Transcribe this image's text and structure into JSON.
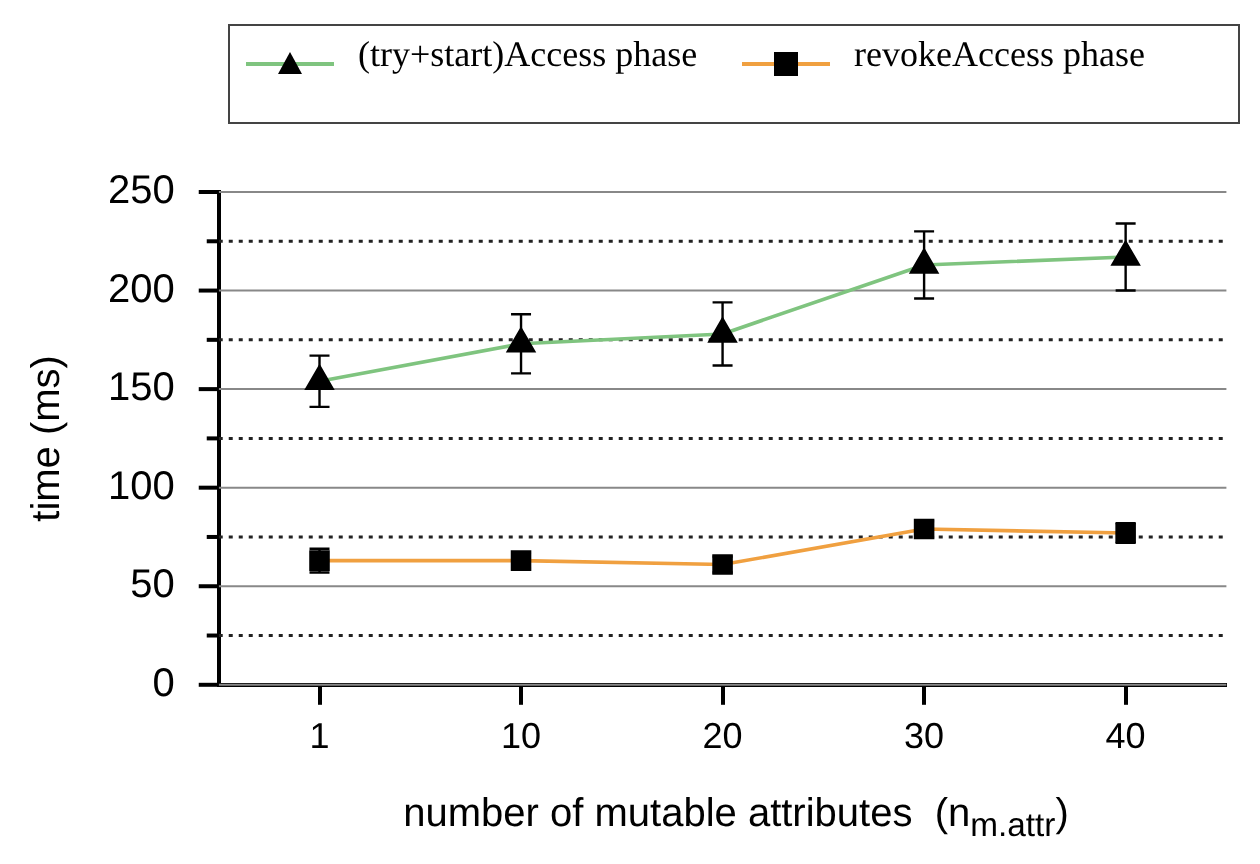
{
  "chart_data": {
    "type": "line",
    "xlabel": "number of mutable attributes  (n$_{m.attr}$)",
    "ylabel": "time (ms)",
    "categories": [
      "1",
      "10",
      "20",
      "30",
      "40"
    ],
    "series": [
      {
        "name": "(try+start)Access phase",
        "color": "#7fc47f",
        "marker": "triangle",
        "values": [
          154,
          173,
          178,
          213,
          217
        ],
        "errors": [
          13,
          15,
          16,
          17,
          17
        ]
      },
      {
        "name": "revokeAccess phase",
        "color": "#f0a040",
        "marker": "square",
        "values": [
          63,
          63,
          61,
          79,
          77
        ],
        "errors": [
          6,
          4,
          4,
          4,
          5
        ]
      }
    ],
    "ylim": [
      0,
      250
    ],
    "yticks": [
      0,
      {
        "value": 25,
        "label": null
      },
      50,
      {
        "value": 75,
        "label": null
      },
      100,
      {
        "value": 125,
        "label": null
      },
      150,
      {
        "value": 175,
        "label": null
      },
      200,
      {
        "value": 225,
        "label": null
      },
      250
    ],
    "grid": "y",
    "legend": "top",
    "line_style": "solid"
  }
}
